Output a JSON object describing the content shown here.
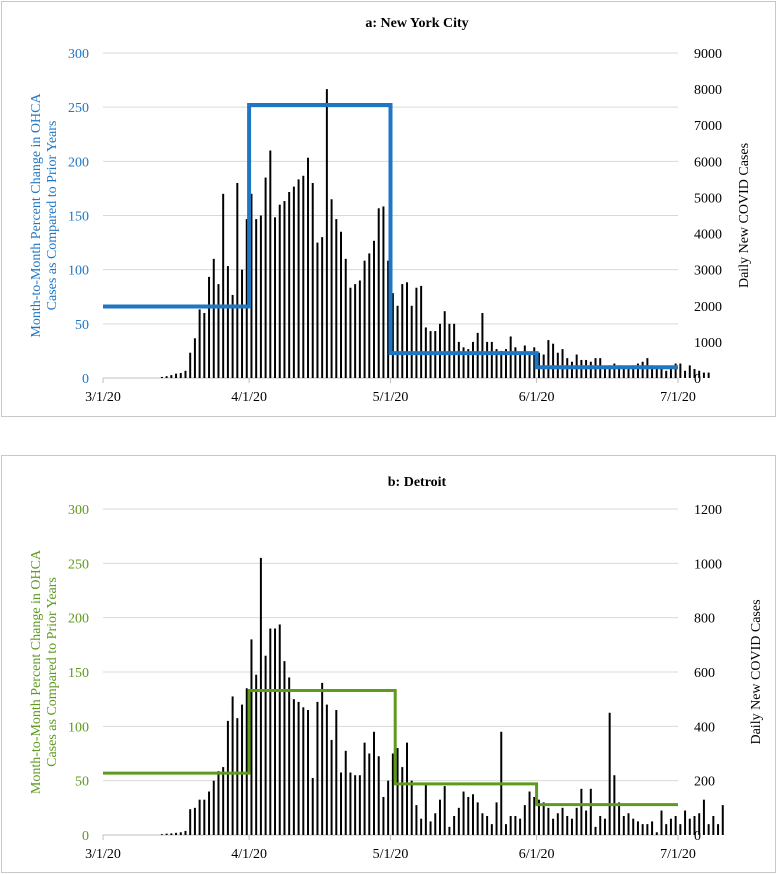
{
  "chart_data": [
    {
      "type": "bar+line",
      "title": "a: New York City",
      "left_axis_label": "Month-to-Month Percent Change in OHCA Cases as Compared to Prior Years",
      "left_axis_label_lines": [
        "Month-to-Month Percent Change in OHCA",
        "Cases as Compared to Prior Years"
      ],
      "right_axis_label": "Daily New COVID Cases",
      "left_ylim": [
        0,
        300
      ],
      "left_ticks": [
        0,
        50,
        100,
        150,
        200,
        250,
        300
      ],
      "right_ylim": [
        0,
        9000
      ],
      "right_ticks": [
        0,
        1000,
        2000,
        3000,
        4000,
        5000,
        6000,
        7000,
        8000,
        9000
      ],
      "x_tick_labels": [
        "3/1/20",
        "4/1/20",
        "5/1/20",
        "6/1/20",
        "7/1/20"
      ],
      "x_ticks_day": [
        0,
        31,
        61,
        92,
        122
      ],
      "line_color": "#1f77c4",
      "line_series": {
        "name": "OHCA percent change",
        "segments": [
          {
            "start_day": 0,
            "end_day": 31,
            "value": 66
          },
          {
            "start_day": 31,
            "end_day": 61,
            "value": 252
          },
          {
            "start_day": 61,
            "end_day": 92,
            "value": 23
          },
          {
            "start_day": 92,
            "end_day": 122,
            "value": 10
          }
        ]
      },
      "bar_series": {
        "name": "Daily New COVID Cases",
        "color": "#000000",
        "start_day": 12,
        "values": [
          30,
          50,
          80,
          120,
          140,
          200,
          700,
          1100,
          1900,
          1800,
          2800,
          3300,
          2600,
          5100,
          3100,
          2300,
          5400,
          3000,
          4400,
          5100,
          4400,
          4500,
          5550,
          6300,
          4450,
          4800,
          4900,
          5150,
          5300,
          5500,
          5600,
          6100,
          5400,
          3750,
          3900,
          8000,
          4950,
          4400,
          4050,
          3300,
          2500,
          2600,
          2700,
          3250,
          3450,
          3800,
          4700,
          4750,
          3250,
          2350,
          2000,
          2600,
          2650,
          2000,
          2500,
          2550,
          1400,
          1300,
          1300,
          1500,
          1850,
          1500,
          1500,
          1000,
          850,
          800,
          1000,
          1250,
          1800,
          1000,
          1000,
          800,
          750,
          800,
          1150,
          850,
          700,
          900,
          650,
          850,
          700,
          650,
          1050,
          950,
          700,
          800,
          550,
          450,
          650,
          500,
          500,
          450,
          550,
          550,
          300,
          350,
          400,
          350,
          300,
          250,
          350,
          400,
          450,
          550,
          350,
          300,
          300,
          200,
          300,
          400,
          400,
          200,
          350,
          250,
          200,
          150,
          150
        ]
      }
    },
    {
      "type": "bar+line",
      "title": "b: Detroit",
      "left_axis_label": "Month-to-Month Percent Change in OHCA Cases as Compared to Prior Years",
      "left_axis_label_lines": [
        "Month-to-Month Percent Change in OHCA",
        "Cases as Compared to Prior Years"
      ],
      "right_axis_label": "Daily New COVID Cases",
      "left_ylim": [
        0,
        300
      ],
      "left_ticks": [
        0,
        50,
        100,
        150,
        200,
        250,
        300
      ],
      "right_ylim": [
        0,
        1200
      ],
      "right_ticks": [
        0,
        200,
        400,
        600,
        800,
        1000,
        1200
      ],
      "x_tick_labels": [
        "3/1/20",
        "4/1/20",
        "5/1/20",
        "6/1/20",
        "7/1/20"
      ],
      "x_ticks_day": [
        0,
        31,
        61,
        92,
        122
      ],
      "line_color": "#5e9a1e",
      "line_series": {
        "name": "OHCA percent change",
        "segments": [
          {
            "start_day": 0,
            "end_day": 31,
            "value": 57
          },
          {
            "start_day": 31,
            "end_day": 62,
            "value": 133
          },
          {
            "start_day": 62,
            "end_day": 92,
            "value": 47
          },
          {
            "start_day": 92,
            "end_day": 122,
            "value": 28
          }
        ]
      },
      "bar_series": {
        "name": "Daily New COVID Cases",
        "color": "#000000",
        "start_day": 12,
        "values": [
          3,
          5,
          6,
          8,
          10,
          15,
          95,
          100,
          130,
          130,
          160,
          200,
          235,
          250,
          420,
          510,
          430,
          480,
          540,
          720,
          590,
          1020,
          660,
          760,
          760,
          775,
          640,
          580,
          500,
          490,
          470,
          460,
          210,
          490,
          560,
          480,
          350,
          460,
          230,
          310,
          230,
          220,
          220,
          340,
          300,
          380,
          290,
          140,
          200,
          300,
          320,
          250,
          340,
          200,
          110,
          60,
          190,
          50,
          80,
          130,
          180,
          30,
          70,
          100,
          160,
          140,
          150,
          120,
          80,
          70,
          40,
          120,
          380,
          40,
          70,
          70,
          60,
          110,
          160,
          140,
          130,
          120,
          100,
          60,
          80,
          100,
          70,
          60,
          100,
          170,
          90,
          170,
          30,
          70,
          60,
          450,
          220,
          120,
          70,
          80,
          60,
          50,
          40,
          40,
          50,
          10,
          90,
          40,
          60,
          70,
          40,
          90,
          60,
          70,
          80,
          130,
          40,
          70,
          40,
          110
        ]
      }
    }
  ]
}
